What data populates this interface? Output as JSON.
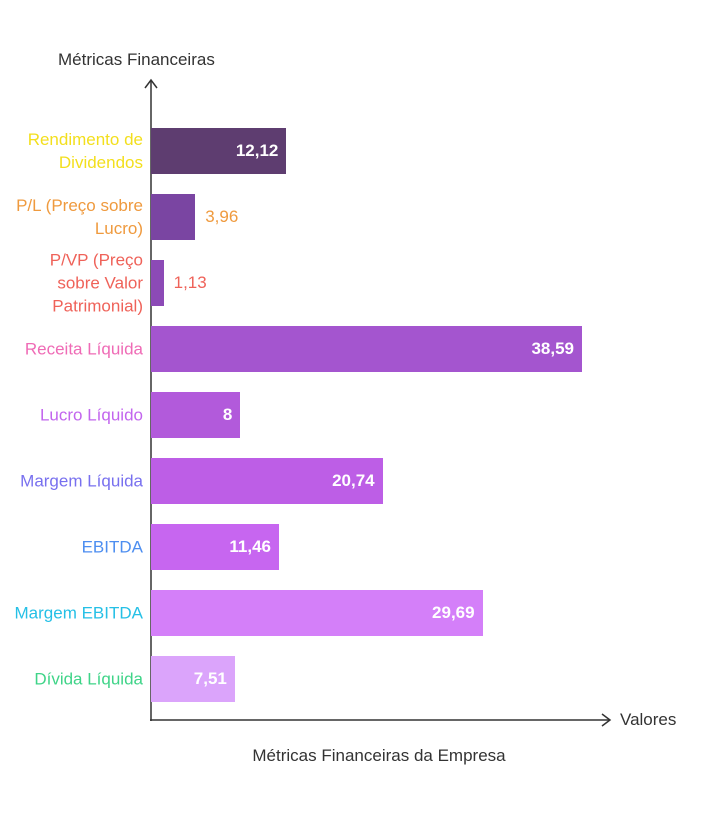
{
  "chart_data": {
    "type": "bar",
    "orientation": "horizontal",
    "y_label": "Métricas Financeiras",
    "x_label": "Valores",
    "caption": "Métricas Financeiras da Empresa",
    "categories": [
      "Rendimento de Dividendos",
      "P/L (Preço sobre Lucro)",
      "P/VP (Preço sobre Valor Patrimonial)",
      "Receita Líquida",
      "Lucro Líquido",
      "Margem Líquida",
      "EBITDA",
      "Margem EBITDA",
      "Dívida Líquida"
    ],
    "values": [
      12.12,
      3.96,
      1.13,
      38.59,
      8,
      20.74,
      11.46,
      29.69,
      7.51
    ],
    "value_labels": [
      "12,12",
      "3,96",
      "1,13",
      "38,59",
      "8",
      "20,74",
      "11,46",
      "29,69",
      "7,51"
    ],
    "colors": [
      "#5e3d70",
      "#7a45a2",
      "#8c4ab6",
      "#a455cf",
      "#b25adb",
      "#bd5ee6",
      "#c766f0",
      "#d47ff9",
      "#dba4fb"
    ],
    "label_colors": [
      "#f3df1d",
      "#ef9a3e",
      "#ef6259",
      "#ef6bb6",
      "#c265ee",
      "#7870ef",
      "#4d8ef0",
      "#25c0e6",
      "#3fd488"
    ]
  }
}
